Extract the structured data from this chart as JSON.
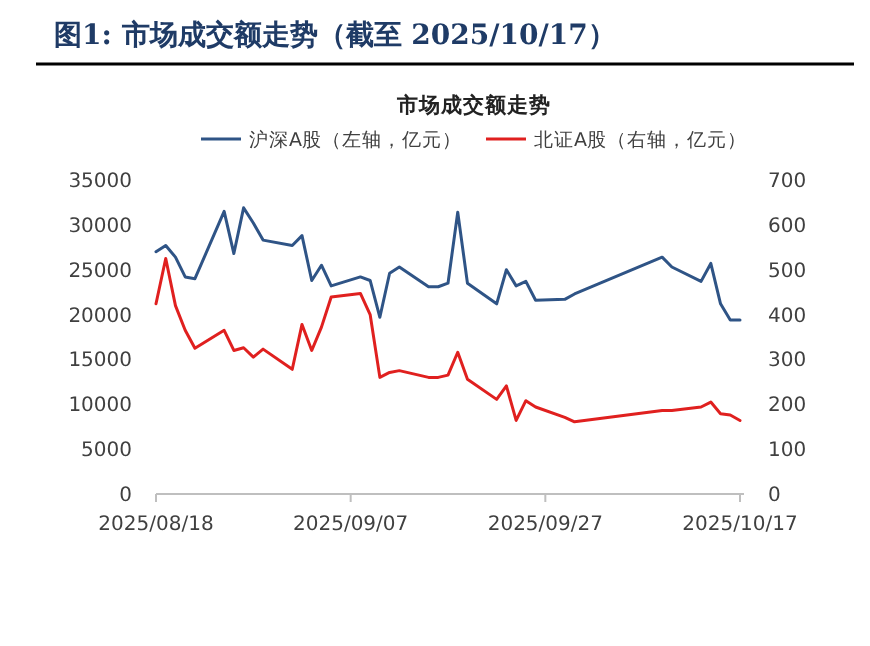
{
  "chart_data": {
    "type": "line",
    "title": "图1:  市场成交额走势（截至 2025/10/17）",
    "subtitle": "市场成交额走势",
    "legend": "top",
    "grid": false,
    "x": [
      "2025-08-18",
      "2025-08-19",
      "2025-08-20",
      "2025-08-21",
      "2025-08-22",
      "2025-08-25",
      "2025-08-26",
      "2025-08-27",
      "2025-08-28",
      "2025-08-29",
      "2025-09-01",
      "2025-09-02",
      "2025-09-03",
      "2025-09-04",
      "2025-09-05",
      "2025-09-08",
      "2025-09-09",
      "2025-09-10",
      "2025-09-11",
      "2025-09-12",
      "2025-09-15",
      "2025-09-16",
      "2025-09-17",
      "2025-09-18",
      "2025-09-19",
      "2025-09-22",
      "2025-09-23",
      "2025-09-24",
      "2025-09-25",
      "2025-09-26",
      "2025-09-29",
      "2025-09-30",
      "2025-10-09",
      "2025-10-10",
      "2025-10-13",
      "2025-10-14",
      "2025-10-15",
      "2025-10-16",
      "2025-10-17"
    ],
    "series": [
      {
        "name": "沪深A股（左轴，亿元）",
        "color": "#2f5486",
        "values": [
          27000,
          27700,
          26400,
          24200,
          24000,
          31500,
          26800,
          31900,
          30200,
          28300,
          27700,
          28800,
          23800,
          25500,
          23200,
          24200,
          23800,
          19700,
          24600,
          25300,
          23100,
          23100,
          23500,
          31400,
          23500,
          21200,
          25000,
          23200,
          23700,
          21600,
          21700,
          22300,
          26400,
          25300,
          23700,
          25700,
          21200,
          19400,
          19400
        ]
      },
      {
        "name": "北证A股（右轴，亿元）",
        "color": "#e0201f",
        "axis": "y2",
        "values": [
          424,
          525,
          420,
          365,
          325,
          365,
          320,
          326,
          305,
          323,
          278,
          378,
          320,
          372,
          439,
          447,
          400,
          260,
          271,
          275,
          260,
          260,
          265,
          316,
          256,
          211,
          241,
          164,
          208,
          194,
          171,
          161,
          186,
          186,
          194,
          205,
          179,
          176,
          164
        ]
      }
    ],
    "xlim": [
      "2025-08-18",
      "2025-10-17"
    ],
    "xticks": [
      {
        "value": "2025-08-18",
        "label": "2025/08/18"
      },
      {
        "value": "2025-09-07",
        "label": "2025/09/07"
      },
      {
        "value": "2025-09-27",
        "label": "2025/09/27"
      },
      {
        "value": "2025-10-17",
        "label": "2025/10/17"
      }
    ],
    "ylim": [
      0,
      35000
    ],
    "yticks": [
      0,
      5000,
      10000,
      15000,
      20000,
      25000,
      30000,
      35000
    ],
    "y2lim": [
      0,
      700
    ],
    "y2ticks": [
      0,
      100,
      200,
      300,
      400,
      500,
      600,
      700
    ]
  }
}
